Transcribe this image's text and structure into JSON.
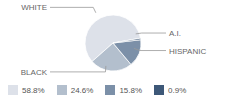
{
  "chart_data": {
    "type": "pie",
    "categories": [
      "WHITE",
      "BLACK",
      "HISPANIC",
      "A.I."
    ],
    "values": [
      58.8,
      24.6,
      15.8,
      0.9
    ],
    "value_labels": [
      "58.8%",
      "24.6%",
      "15.8%",
      "0.9%"
    ],
    "colors": [
      "#dde1e9",
      "#b3bfcd",
      "#7c90a8",
      "#3d5878"
    ],
    "legend": "bottom"
  }
}
